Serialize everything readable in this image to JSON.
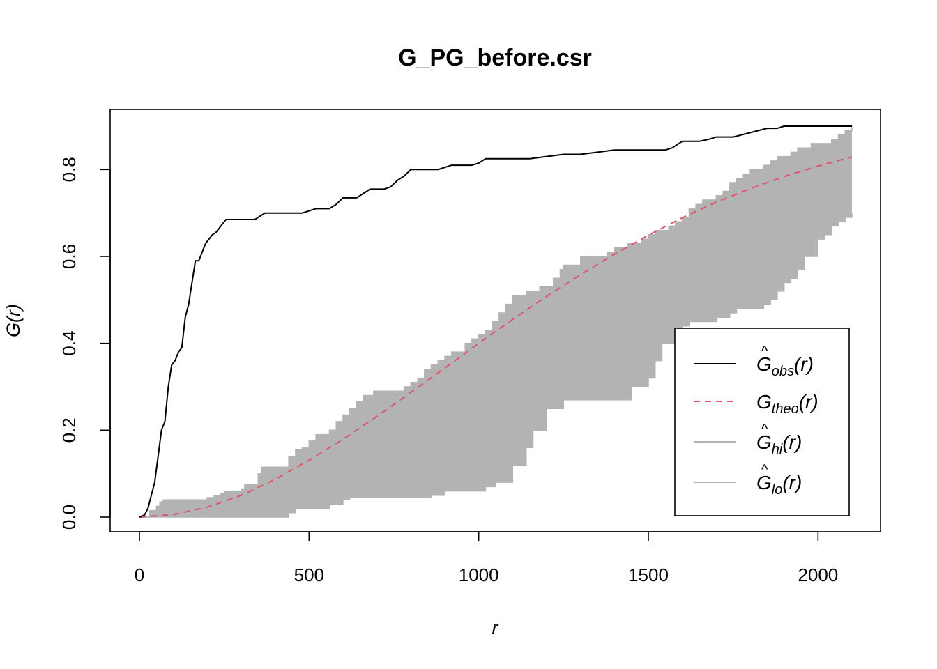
{
  "chart_data": {
    "type": "line",
    "title": "G_PG_before.csr",
    "xlabel": "r",
    "ylabel": "G(r)",
    "xlim": [
      0,
      2100
    ],
    "ylim": [
      0,
      0.9
    ],
    "xticks": [
      0,
      500,
      1000,
      1500,
      2000
    ],
    "yticks": [
      0.0,
      0.2,
      0.4,
      0.6,
      0.8
    ],
    "xtick_labels": [
      "0",
      "500",
      "1000",
      "1500",
      "2000"
    ],
    "ytick_labels": [
      "0.0",
      "0.2",
      "0.4",
      "0.6",
      "0.8"
    ],
    "legend_position": "bottom-right",
    "colors": {
      "obs": "#000000",
      "theo": "#DF536B",
      "envelope": "#B3B3B3",
      "legend_gray": "#B3B3B3"
    },
    "series": [
      {
        "name": "Ĝobs(r)",
        "legend_base": "G",
        "legend_hat": true,
        "legend_sub": "obs",
        "legend_arg": "(r)",
        "style": "solid",
        "x": [
          0,
          15,
          25,
          35,
          45,
          55,
          65,
          75,
          85,
          95,
          105,
          115,
          125,
          135,
          145,
          155,
          165,
          175,
          185,
          195,
          205,
          215,
          225,
          235,
          245,
          255,
          265,
          275,
          290,
          310,
          340,
          370,
          380,
          400,
          420,
          440,
          460,
          480,
          500,
          520,
          540,
          560,
          580,
          600,
          620,
          640,
          660,
          680,
          700,
          720,
          740,
          760,
          780,
          800,
          820,
          840,
          860,
          880,
          900,
          920,
          940,
          960,
          980,
          1000,
          1020,
          1040,
          1060,
          1080,
          1100,
          1150,
          1200,
          1250,
          1300,
          1350,
          1400,
          1450,
          1500,
          1550,
          1570,
          1600,
          1650,
          1680,
          1700,
          1750,
          1800,
          1850,
          1880,
          1900,
          1950,
          2000,
          2050,
          2100
        ],
        "y": [
          0,
          0.005,
          0.02,
          0.05,
          0.08,
          0.14,
          0.2,
          0.22,
          0.3,
          0.35,
          0.36,
          0.38,
          0.39,
          0.46,
          0.49,
          0.54,
          0.59,
          0.59,
          0.61,
          0.63,
          0.64,
          0.65,
          0.655,
          0.665,
          0.675,
          0.685,
          0.685,
          0.685,
          0.685,
          0.685,
          0.685,
          0.7,
          0.7,
          0.7,
          0.7,
          0.7,
          0.7,
          0.7,
          0.705,
          0.71,
          0.71,
          0.71,
          0.72,
          0.735,
          0.735,
          0.735,
          0.745,
          0.755,
          0.755,
          0.755,
          0.76,
          0.775,
          0.785,
          0.8,
          0.8,
          0.8,
          0.8,
          0.8,
          0.805,
          0.81,
          0.81,
          0.81,
          0.81,
          0.815,
          0.825,
          0.825,
          0.825,
          0.825,
          0.825,
          0.825,
          0.83,
          0.835,
          0.835,
          0.84,
          0.845,
          0.845,
          0.845,
          0.845,
          0.85,
          0.865,
          0.865,
          0.87,
          0.875,
          0.875,
          0.885,
          0.895,
          0.895,
          0.9,
          0.9,
          0.9,
          0.9,
          0.9
        ]
      },
      {
        "name": "Gtheo(r)",
        "legend_base": "G",
        "legend_hat": false,
        "legend_sub": "theo",
        "legend_arg": "(r)",
        "style": "dashed",
        "x": [
          0,
          100,
          200,
          300,
          400,
          500,
          600,
          700,
          800,
          900,
          1000,
          1100,
          1200,
          1300,
          1400,
          1500,
          1600,
          1700,
          1800,
          1900,
          2000,
          2100
        ],
        "y": [
          0,
          0.006,
          0.023,
          0.05,
          0.087,
          0.131,
          0.179,
          0.232,
          0.287,
          0.343,
          0.4,
          0.455,
          0.508,
          0.558,
          0.605,
          0.649,
          0.689,
          0.725,
          0.756,
          0.784,
          0.808,
          0.829
        ]
      },
      {
        "name": "Ĝhi(r)",
        "legend_base": "G",
        "legend_hat": true,
        "legend_sub": "hi",
        "legend_arg": "(r)",
        "style": "band-upper",
        "x": [
          0,
          30,
          50,
          60,
          70,
          80,
          200,
          220,
          240,
          250,
          300,
          310,
          350,
          360,
          420,
          440,
          460,
          480,
          500,
          520,
          560,
          580,
          600,
          620,
          640,
          660,
          690,
          700,
          760,
          780,
          800,
          820,
          840,
          860,
          880,
          900,
          920,
          960,
          980,
          1000,
          1020,
          1040,
          1060,
          1080,
          1100,
          1140,
          1180,
          1200,
          1220,
          1240,
          1250,
          1300,
          1310,
          1340,
          1380,
          1400,
          1440,
          1480,
          1500,
          1520,
          1560,
          1580,
          1600,
          1620,
          1640,
          1660,
          1700,
          1720,
          1740,
          1760,
          1780,
          1800,
          1840,
          1860,
          1880,
          1920,
          1940,
          1960,
          1980,
          2000,
          2040,
          2060,
          2080,
          2100
        ],
        "y": [
          0,
          0.015,
          0.025,
          0.035,
          0.04,
          0.04,
          0.045,
          0.05,
          0.055,
          0.06,
          0.065,
          0.075,
          0.1,
          0.115,
          0.115,
          0.14,
          0.155,
          0.16,
          0.175,
          0.19,
          0.2,
          0.22,
          0.235,
          0.25,
          0.265,
          0.28,
          0.29,
          0.29,
          0.29,
          0.3,
          0.31,
          0.32,
          0.34,
          0.35,
          0.36,
          0.37,
          0.38,
          0.4,
          0.41,
          0.42,
          0.43,
          0.45,
          0.47,
          0.49,
          0.51,
          0.52,
          0.53,
          0.53,
          0.55,
          0.57,
          0.58,
          0.6,
          0.6,
          0.6,
          0.61,
          0.62,
          0.63,
          0.64,
          0.65,
          0.66,
          0.67,
          0.68,
          0.69,
          0.71,
          0.72,
          0.73,
          0.74,
          0.75,
          0.77,
          0.78,
          0.79,
          0.8,
          0.81,
          0.82,
          0.83,
          0.84,
          0.85,
          0.85,
          0.86,
          0.86,
          0.87,
          0.88,
          0.89,
          0.9
        ]
      },
      {
        "name": "Ĝlo(r)",
        "legend_base": "G",
        "legend_hat": true,
        "legend_sub": "lo",
        "legend_arg": "(r)",
        "style": "band-lower",
        "x": [
          0,
          420,
          440,
          460,
          560,
          600,
          620,
          800,
          860,
          900,
          1020,
          1050,
          1100,
          1140,
          1160,
          1200,
          1250,
          1320,
          1400,
          1450,
          1500,
          1520,
          1540,
          1600,
          1620,
          1660,
          1700,
          1740,
          1760,
          1800,
          1840,
          1860,
          1880,
          1900,
          1920,
          1940,
          1960,
          2000,
          2020,
          2040,
          2060,
          2080,
          2100
        ],
        "y": [
          0,
          0,
          0.01,
          0.02,
          0.03,
          0.04,
          0.045,
          0.045,
          0.05,
          0.06,
          0.07,
          0.08,
          0.12,
          0.16,
          0.2,
          0.25,
          0.27,
          0.27,
          0.27,
          0.3,
          0.32,
          0.36,
          0.4,
          0.44,
          0.45,
          0.45,
          0.46,
          0.47,
          0.48,
          0.48,
          0.49,
          0.5,
          0.52,
          0.54,
          0.55,
          0.57,
          0.6,
          0.64,
          0.65,
          0.67,
          0.68,
          0.69,
          0.7
        ]
      }
    ]
  }
}
